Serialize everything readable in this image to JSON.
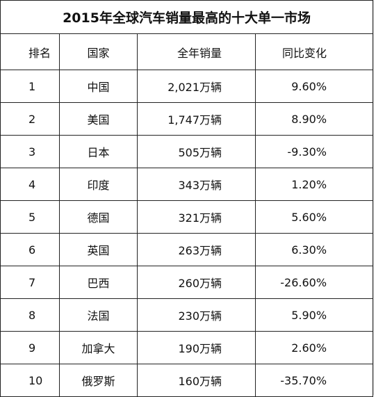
{
  "title": "2015年全球汽车销量最高的十大单一市场",
  "table": {
    "header": [
      "排名",
      "国家",
      "全年销量",
      "同比变化"
    ],
    "rows": [
      [
        "1",
        "中国",
        "2,021万辆",
        "9.60%"
      ],
      [
        "2",
        "美国",
        "1,747万辆",
        "8.90%"
      ],
      [
        "3",
        "日本",
        "505万辆",
        "-9.30%"
      ],
      [
        "4",
        "印度",
        "343万辆",
        "1.20%"
      ],
      [
        "5",
        "德国",
        "321万辆",
        "5.60%"
      ],
      [
        "6",
        "英国",
        "263万辆",
        "6.30%"
      ],
      [
        "7",
        "巴西",
        "260万辆",
        "-26.60%"
      ],
      [
        "8",
        "法国",
        "230万辆",
        "5.90%"
      ],
      [
        "9",
        "加拿大",
        "190万辆",
        "2.60%"
      ],
      [
        "10",
        "俄罗斯",
        "160万辆",
        "-35.70%"
      ]
    ]
  }
}
